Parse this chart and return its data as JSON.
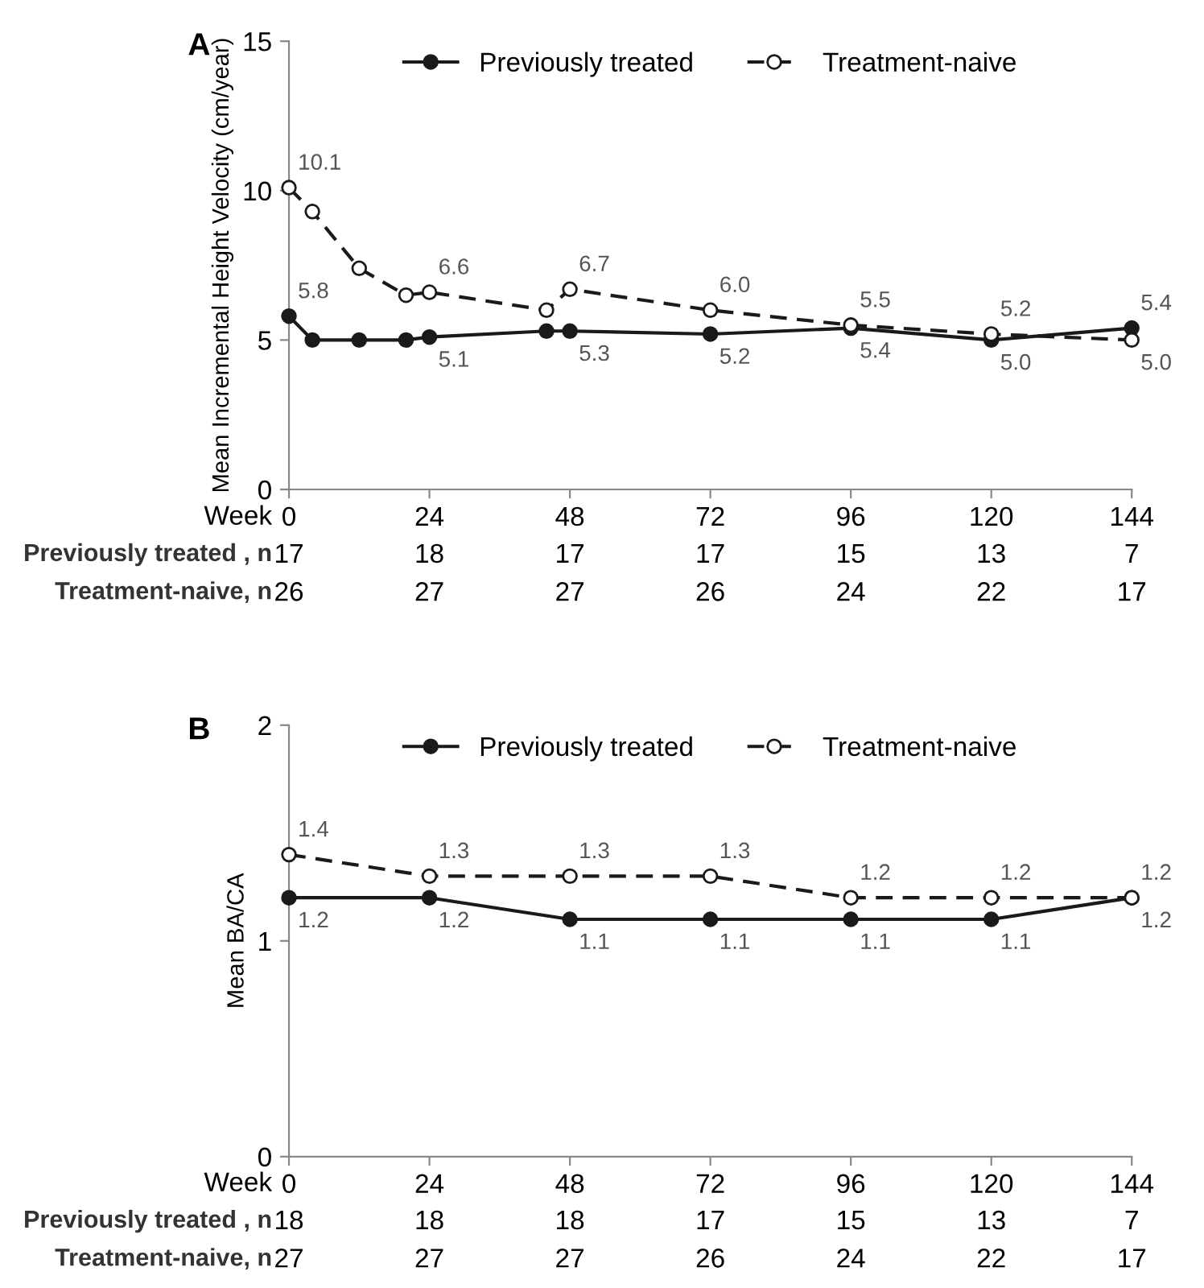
{
  "chart_data": [
    {
      "type": "line",
      "title": "A",
      "ylabel": "Mean Incremental Height Velocity (cm/year)",
      "xlabel": "Week",
      "xlim": [
        0,
        144
      ],
      "xticks": [
        0,
        24,
        48,
        72,
        96,
        120,
        144
      ],
      "ylim": [
        0,
        15
      ],
      "yticks": [
        0,
        5,
        10,
        15
      ],
      "legend": "top",
      "grid": false,
      "series": [
        {
          "name": "Previously treated",
          "color": "#1a1a1a",
          "marker": "circle",
          "line_style": "solid",
          "x": [
            0,
            4,
            12,
            20,
            24,
            44,
            48,
            72,
            96,
            120,
            144
          ],
          "values": [
            5.8,
            5.0,
            5.0,
            5.0,
            5.1,
            5.3,
            5.3,
            5.2,
            5.4,
            5.0,
            5.4
          ],
          "value_labels": [
            "5.8",
            null,
            null,
            null,
            "5.1",
            null,
            "5.3",
            "5.2",
            "5.4",
            "5.0",
            "5.4"
          ]
        },
        {
          "name": "Treatment-naive",
          "color": "#1a1a1a",
          "marker": "circle",
          "line_style": "dashed",
          "x": [
            0,
            4,
            12,
            20,
            24,
            44,
            48,
            72,
            96,
            120,
            144
          ],
          "values": [
            10.1,
            9.3,
            7.4,
            6.5,
            6.6,
            6.0,
            6.7,
            6.0,
            5.5,
            5.2,
            5.0
          ],
          "value_labels": [
            "10.1",
            null,
            null,
            null,
            "6.6",
            null,
            "6.7",
            "6.0",
            "5.5",
            "5.2",
            "5.0"
          ]
        }
      ],
      "annotations": [
        "Previously treated , n",
        "17",
        "18",
        "17",
        "17",
        "15",
        "13",
        "7",
        "Treatment-naive, n",
        "26",
        "27",
        "27",
        "26",
        "24",
        "22",
        "17"
      ]
    },
    {
      "type": "line",
      "title": "B",
      "ylabel": "Mean BA/CA",
      "xlabel": "Week",
      "xlim": [
        0,
        144
      ],
      "xticks": [
        0,
        24,
        48,
        72,
        96,
        120,
        144
      ],
      "ylim": [
        0,
        2
      ],
      "yticks": [
        0,
        1,
        2
      ],
      "legend": "top",
      "grid": false,
      "series": [
        {
          "name": "Previously treated",
          "color": "#1a1a1a",
          "marker": "circle",
          "line_style": "solid",
          "x": [
            0,
            24,
            48,
            72,
            96,
            120,
            144
          ],
          "values": [
            1.2,
            1.2,
            1.1,
            1.1,
            1.1,
            1.1,
            1.2
          ],
          "value_labels": [
            "1.2",
            "1.2",
            "1.1",
            "1.1",
            "1.1",
            "1.1",
            "1.2"
          ]
        },
        {
          "name": "Treatment-naive",
          "color": "#1a1a1a",
          "marker": "circle",
          "line_style": "dashed",
          "x": [
            0,
            24,
            48,
            72,
            96,
            120,
            144
          ],
          "values": [
            1.4,
            1.3,
            1.3,
            1.3,
            1.2,
            1.2,
            1.2
          ],
          "value_labels": [
            "1.4",
            "1.3",
            "1.3",
            "1.3",
            "1.2",
            "1.2",
            "1.2"
          ]
        }
      ],
      "annotations": [
        "Previously treated , n",
        "18",
        "18",
        "18",
        "17",
        "15",
        "13",
        "7",
        "Treatment-naive, n",
        "27",
        "27",
        "27",
        "26",
        "24",
        "22",
        "17"
      ]
    }
  ]
}
